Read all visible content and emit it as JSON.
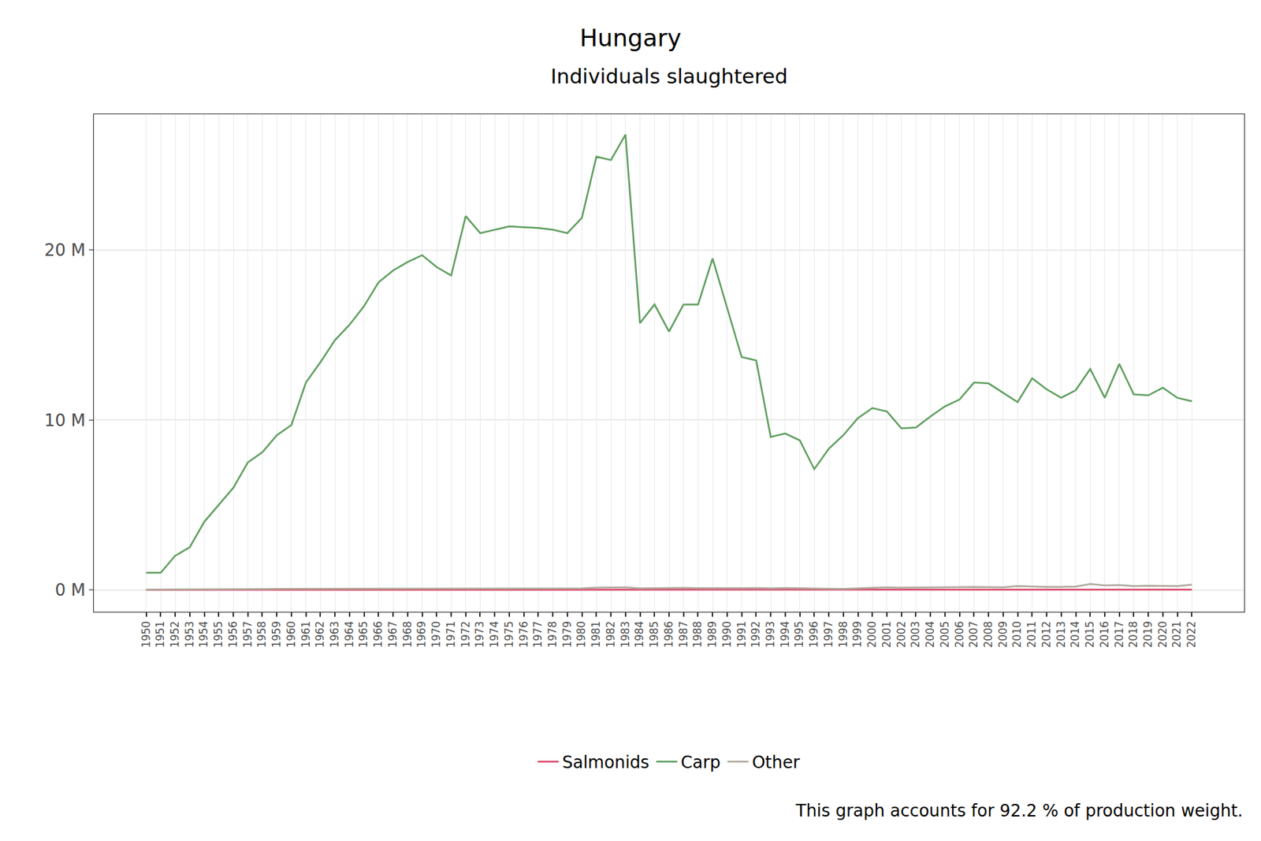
{
  "chart_data": {
    "type": "line",
    "title": "Hungary",
    "subtitle": "Individuals slaughtered",
    "footnote": "This graph accounts for 92.2 % of production weight.",
    "x": [
      1950,
      1951,
      1952,
      1953,
      1954,
      1955,
      1956,
      1957,
      1958,
      1959,
      1960,
      1961,
      1962,
      1963,
      1964,
      1965,
      1966,
      1967,
      1968,
      1969,
      1970,
      1971,
      1972,
      1973,
      1974,
      1975,
      1976,
      1977,
      1978,
      1979,
      1980,
      1981,
      1982,
      1983,
      1984,
      1985,
      1986,
      1987,
      1988,
      1989,
      1990,
      1991,
      1992,
      1993,
      1994,
      1995,
      1996,
      1997,
      1998,
      1999,
      2000,
      2001,
      2002,
      2003,
      2004,
      2005,
      2006,
      2007,
      2008,
      2009,
      2010,
      2011,
      2012,
      2013,
      2014,
      2015,
      2016,
      2017,
      2018,
      2019,
      2020,
      2021,
      2022
    ],
    "series": [
      {
        "name": "Salmonids",
        "color": "#dc4b6e",
        "values": [
          0,
          0,
          0,
          0,
          0,
          0,
          0,
          0,
          0,
          0,
          0,
          0,
          0,
          0,
          0,
          0,
          0,
          0,
          0,
          0,
          0,
          0,
          0,
          0,
          0,
          0,
          0,
          0,
          0,
          0,
          0.01,
          0.01,
          0.01,
          0.01,
          0.01,
          0.01,
          0.01,
          0.01,
          0.01,
          0.01,
          0.01,
          0.01,
          0.01,
          0.01,
          0.01,
          0.01,
          0.01,
          0.01,
          0.01,
          0.01,
          0.01,
          0.01,
          0.01,
          0.01,
          0.01,
          0.01,
          0.01,
          0.01,
          0.01,
          0.01,
          0.01,
          0.01,
          0.01,
          0.01,
          0.01,
          0.01,
          0.01,
          0.01,
          0.01,
          0.01,
          0.01,
          0.01,
          0.01
        ]
      },
      {
        "name": "Carp",
        "color": "#5f9e5f",
        "values": [
          1.0,
          1.0,
          2.0,
          2.5,
          4.0,
          5.0,
          6.0,
          7.5,
          8.1,
          9.1,
          9.7,
          12.2,
          13.4,
          14.7,
          15.6,
          16.7,
          18.1,
          18.8,
          19.3,
          19.7,
          19.0,
          18.5,
          22.0,
          21.0,
          21.2,
          21.4,
          21.35,
          21.3,
          21.2,
          21.0,
          21.9,
          25.5,
          25.3,
          26.8,
          15.7,
          16.8,
          15.2,
          16.8,
          16.8,
          19.5,
          16.6,
          13.7,
          13.5,
          9.0,
          9.2,
          8.8,
          7.1,
          8.3,
          9.1,
          10.1,
          10.7,
          10.5,
          9.5,
          9.55,
          10.2,
          10.8,
          11.2,
          12.2,
          12.15,
          11.6,
          11.05,
          12.45,
          11.8,
          11.3,
          11.75,
          13.0,
          11.3,
          13.3,
          11.5,
          11.45,
          11.9,
          11.3,
          11.1
        ]
      },
      {
        "name": "Other",
        "color": "#b0a89c",
        "values": [
          0.01,
          0.01,
          0.02,
          0.02,
          0.02,
          0.03,
          0.04,
          0.04,
          0.04,
          0.05,
          0.05,
          0.06,
          0.06,
          0.06,
          0.07,
          0.06,
          0.06,
          0.06,
          0.07,
          0.08,
          0.07,
          0.06,
          0.07,
          0.07,
          0.07,
          0.07,
          0.07,
          0.07,
          0.07,
          0.07,
          0.08,
          0.12,
          0.13,
          0.14,
          0.08,
          0.09,
          0.11,
          0.11,
          0.09,
          0.08,
          0.09,
          0.09,
          0.1,
          0.08,
          0.1,
          0.08,
          0.05,
          0.06,
          0.05,
          0.09,
          0.12,
          0.14,
          0.12,
          0.12,
          0.14,
          0.15,
          0.15,
          0.16,
          0.16,
          0.14,
          0.22,
          0.18,
          0.17,
          0.17,
          0.19,
          0.34,
          0.26,
          0.28,
          0.22,
          0.24,
          0.22,
          0.22,
          0.3
        ]
      }
    ],
    "xlim": [
      1946.4,
      2025.6
    ],
    "xticks": [
      1950,
      1951,
      1952,
      1953,
      1954,
      1955,
      1956,
      1957,
      1958,
      1959,
      1960,
      1961,
      1962,
      1963,
      1964,
      1965,
      1966,
      1967,
      1968,
      1969,
      1970,
      1971,
      1972,
      1973,
      1974,
      1975,
      1976,
      1977,
      1978,
      1979,
      1980,
      1981,
      1982,
      1983,
      1984,
      1985,
      1986,
      1987,
      1988,
      1989,
      1990,
      1991,
      1992,
      1993,
      1994,
      1995,
      1996,
      1997,
      1998,
      1999,
      2000,
      2001,
      2002,
      2003,
      2004,
      2005,
      2006,
      2007,
      2008,
      2009,
      2010,
      2011,
      2012,
      2013,
      2014,
      2015,
      2016,
      2017,
      2018,
      2019,
      2020,
      2021,
      2022
    ],
    "ylim": [
      -1.3,
      28
    ],
    "yticks": [
      {
        "value": 0,
        "label": "0 M"
      },
      {
        "value": 10,
        "label": "10 M"
      },
      {
        "value": 20,
        "label": "20 M"
      }
    ],
    "grid": true,
    "legend": "bottom"
  }
}
